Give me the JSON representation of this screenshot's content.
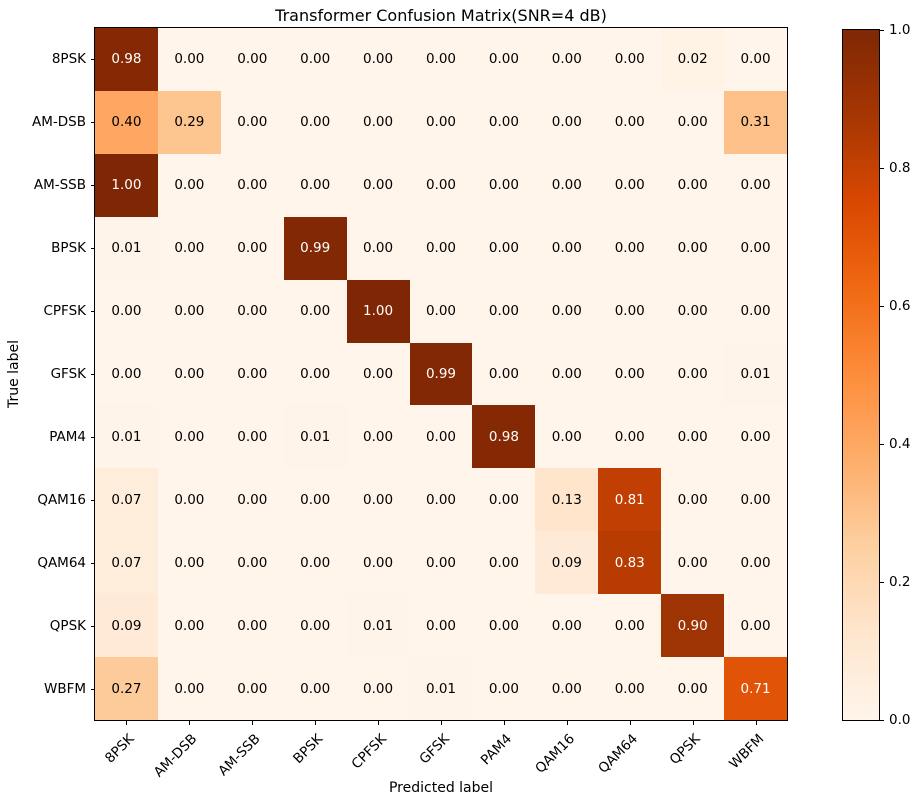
{
  "title": "Transformer Confusion Matrix(SNR=4 dB)",
  "chart_data": {
    "type": "heatmap",
    "title": "Transformer Confusion Matrix(SNR=4 dB)",
    "xlabel": "Predicted label",
    "ylabel": "True label",
    "categories": [
      "8PSK",
      "AM-DSB",
      "AM-SSB",
      "BPSK",
      "CPFSK",
      "GFSK",
      "PAM4",
      "QAM16",
      "QAM64",
      "QPSK",
      "WBFM"
    ],
    "matrix": [
      [
        0.98,
        0.0,
        0.0,
        0.0,
        0.0,
        0.0,
        0.0,
        0.0,
        0.0,
        0.02,
        0.0
      ],
      [
        0.4,
        0.29,
        0.0,
        0.0,
        0.0,
        0.0,
        0.0,
        0.0,
        0.0,
        0.0,
        0.31
      ],
      [
        1.0,
        0.0,
        0.0,
        0.0,
        0.0,
        0.0,
        0.0,
        0.0,
        0.0,
        0.0,
        0.0
      ],
      [
        0.01,
        0.0,
        0.0,
        0.99,
        0.0,
        0.0,
        0.0,
        0.0,
        0.0,
        0.0,
        0.0
      ],
      [
        0.0,
        0.0,
        0.0,
        0.0,
        1.0,
        0.0,
        0.0,
        0.0,
        0.0,
        0.0,
        0.0
      ],
      [
        0.0,
        0.0,
        0.0,
        0.0,
        0.0,
        0.99,
        0.0,
        0.0,
        0.0,
        0.0,
        0.01
      ],
      [
        0.01,
        0.0,
        0.0,
        0.01,
        0.0,
        0.0,
        0.98,
        0.0,
        0.0,
        0.0,
        0.0
      ],
      [
        0.07,
        0.0,
        0.0,
        0.0,
        0.0,
        0.0,
        0.0,
        0.13,
        0.81,
        0.0,
        0.0
      ],
      [
        0.07,
        0.0,
        0.0,
        0.0,
        0.0,
        0.0,
        0.0,
        0.09,
        0.83,
        0.0,
        0.0
      ],
      [
        0.09,
        0.0,
        0.0,
        0.0,
        0.01,
        0.0,
        0.0,
        0.0,
        0.0,
        0.9,
        0.0
      ],
      [
        0.27,
        0.0,
        0.0,
        0.0,
        0.0,
        0.01,
        0.0,
        0.0,
        0.0,
        0.0,
        0.71
      ]
    ],
    "vmin": 0.0,
    "vmax": 1.0,
    "colormap": {
      "name": "Oranges",
      "anchors": [
        "#fff5eb",
        "#fee6ce",
        "#fdd0a2",
        "#fdae6b",
        "#fd8d3c",
        "#f16913",
        "#d94801",
        "#a63603",
        "#7f2704"
      ],
      "text_light": "#ffffff",
      "text_dark": "#000000",
      "text_threshold": 0.5
    },
    "colorbar": {
      "position": "right",
      "tick_labels": [
        "1.0",
        "0.8",
        "0.6",
        "0.4",
        "0.2",
        "0.0"
      ],
      "tick_values": [
        1.0,
        0.8,
        0.6,
        0.4,
        0.2,
        0.0
      ]
    },
    "grid": false,
    "legend": "none"
  }
}
